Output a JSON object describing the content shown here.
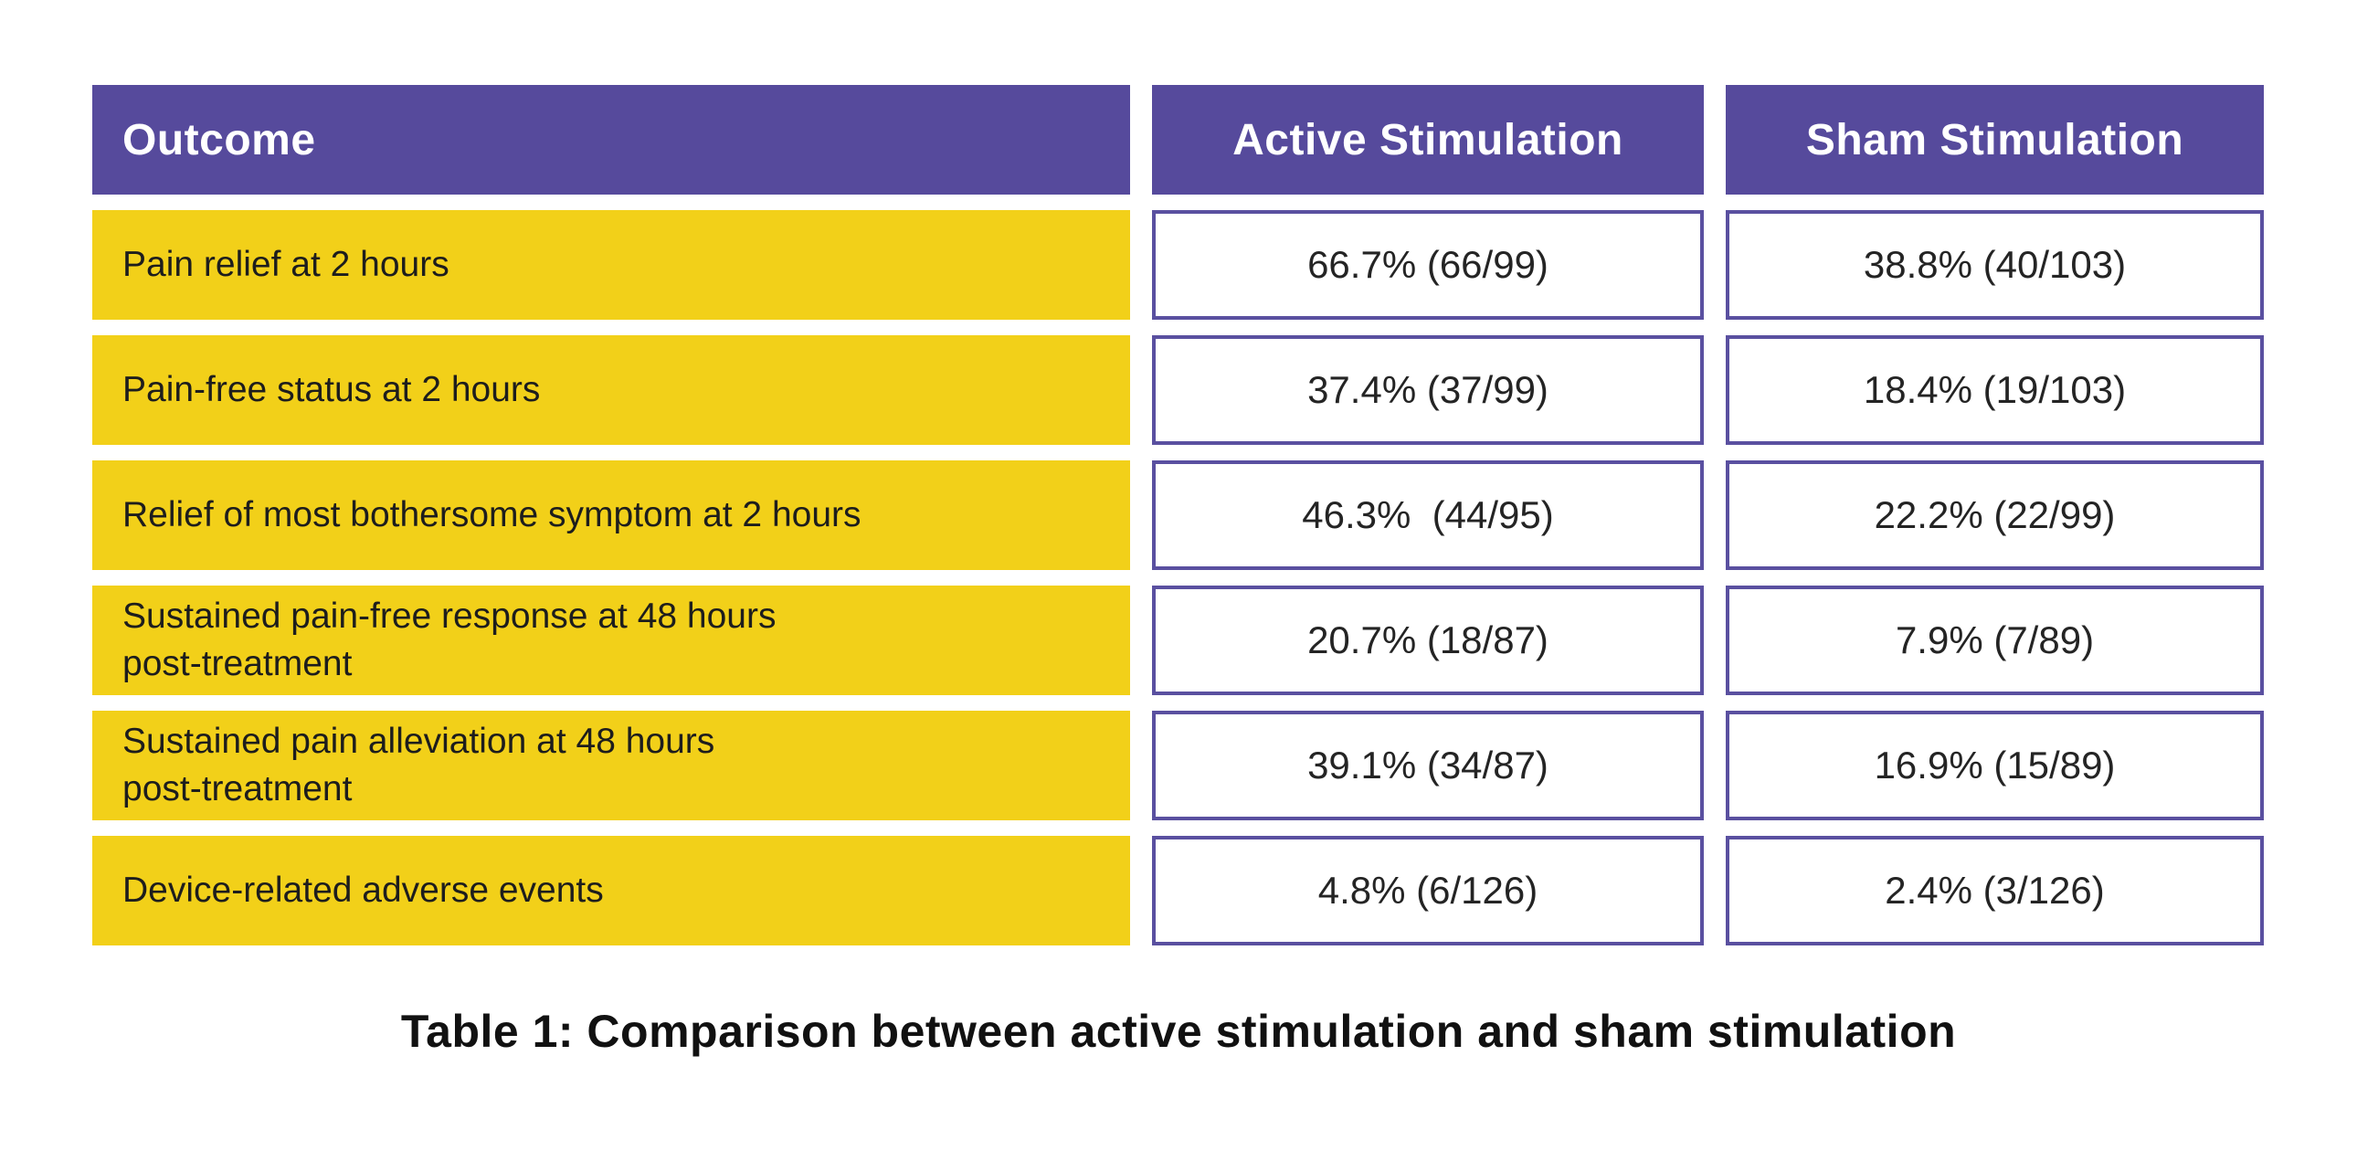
{
  "colors": {
    "header_purple": "#564a9c",
    "cell_border_purple": "#5a50a0",
    "row_yellow": "#f2d019",
    "header_text": "#ffffff",
    "label_text": "#1d1d1d",
    "value_text": "#242424",
    "caption_text": "#111111",
    "background": "#ffffff"
  },
  "table": {
    "columns": [
      "Outcome",
      "Active Stimulation",
      "Sham Stimulation"
    ],
    "rows": [
      {
        "label": "Pain relief at 2 hours",
        "active": "66.7% (66/99)",
        "sham": "38.8% (40/103)"
      },
      {
        "label": "Pain-free status at 2 hours",
        "active": "37.4% (37/99)",
        "sham": "18.4% (19/103)"
      },
      {
        "label": "Relief of most bothersome symptom at 2 hours",
        "active": "46.3%  (44/95)",
        "sham": "22.2% (22/99)"
      },
      {
        "label": "Sustained pain-free response at 48 hours\npost-treatment",
        "active": "20.7% (18/87)",
        "sham": "7.9% (7/89)"
      },
      {
        "label": "Sustained pain alleviation at 48 hours\npost-treatment",
        "active": "39.1% (34/87)",
        "sham": "16.9% (15/89)"
      },
      {
        "label": "Device-related adverse events",
        "active": "4.8% (6/126)",
        "sham": "2.4% (3/126)"
      }
    ]
  },
  "caption": "Table 1: Comparison between active stimulation and sham stimulation",
  "chart_data": {
    "type": "table",
    "title": "Table 1: Comparison between active stimulation and sham stimulation",
    "columns": [
      "Outcome",
      "Active Stimulation",
      "Sham Stimulation"
    ],
    "categories": [
      "Pain relief at 2 hours",
      "Pain-free status at 2 hours",
      "Relief of most bothersome symptom at 2 hours",
      "Sustained pain-free response at 48 hours post-treatment",
      "Sustained pain alleviation at 48 hours post-treatment",
      "Device-related adverse events"
    ],
    "series": [
      {
        "name": "Active Stimulation",
        "values": [
          66.7,
          37.4,
          46.3,
          20.7,
          39.1,
          4.8
        ],
        "fractions": [
          "66/99",
          "37/99",
          "44/95",
          "18/87",
          "34/87",
          "6/126"
        ]
      },
      {
        "name": "Sham Stimulation",
        "values": [
          38.8,
          18.4,
          22.2,
          7.9,
          16.9,
          2.4
        ],
        "fractions": [
          "40/103",
          "19/103",
          "22/99",
          "7/89",
          "15/89",
          "3/126"
        ]
      }
    ],
    "value_unit": "%"
  }
}
